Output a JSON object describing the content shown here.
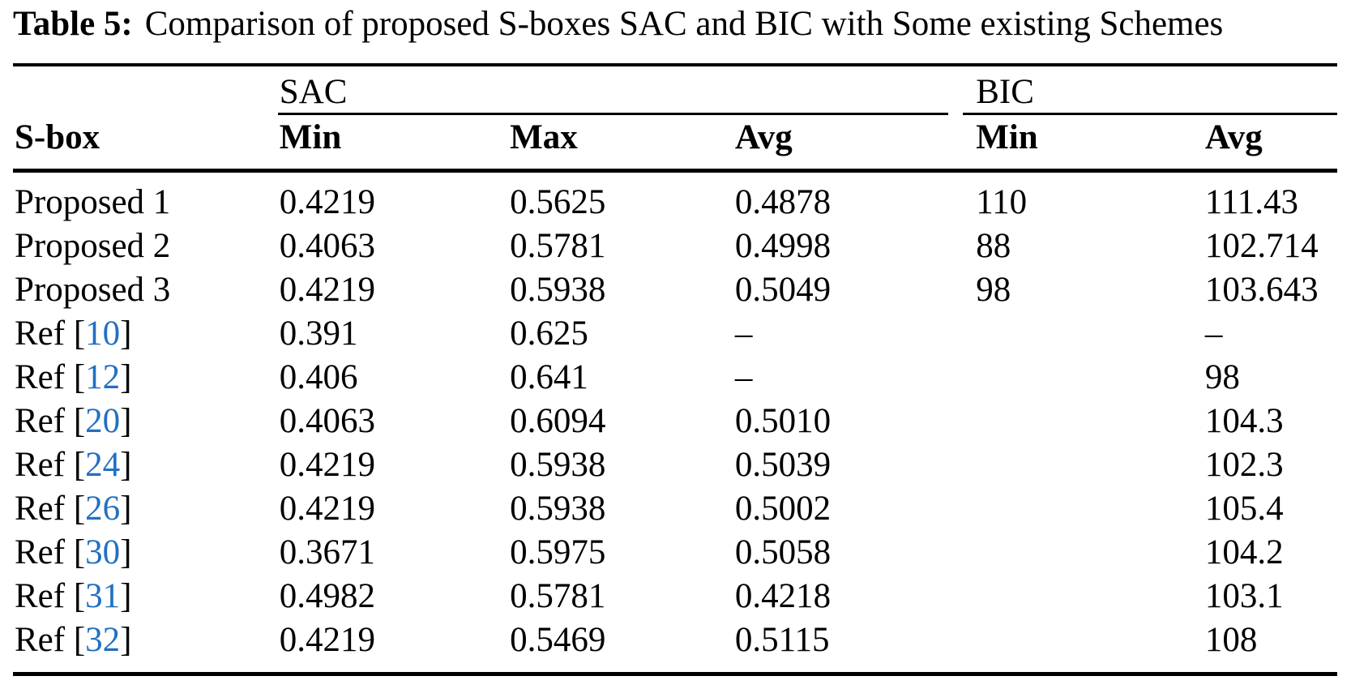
{
  "title": {
    "label": "Table 5:",
    "text": "Comparison of proposed S-boxes SAC and BIC with Some existing Schemes"
  },
  "table": {
    "row_header": "S-box",
    "col_groups": [
      {
        "label": "SAC",
        "span": 3
      },
      {
        "label": "BIC",
        "span": 2
      }
    ],
    "sub_headers": [
      "Min",
      "Max",
      "Avg",
      "Min",
      "Avg"
    ],
    "rows": [
      {
        "prefix": "Proposed 1",
        "ref": "",
        "suffix": "",
        "cells": [
          "0.4219",
          "0.5625",
          "0.4878",
          "110",
          "111.43"
        ]
      },
      {
        "prefix": "Proposed 2",
        "ref": "",
        "suffix": "",
        "cells": [
          "0.4063",
          "0.5781",
          "0.4998",
          "88",
          "102.714"
        ]
      },
      {
        "prefix": "Proposed 3",
        "ref": "",
        "suffix": "",
        "cells": [
          "0.4219",
          "0.5938",
          "0.5049",
          "98",
          "103.643"
        ]
      },
      {
        "prefix": "Ref [",
        "ref": "10",
        "suffix": "]",
        "cells": [
          "0.391",
          "0.625",
          "–",
          "",
          "–"
        ]
      },
      {
        "prefix": "Ref [",
        "ref": "12",
        "suffix": "]",
        "cells": [
          "0.406",
          "0.641",
          "–",
          "",
          "98"
        ]
      },
      {
        "prefix": "Ref [",
        "ref": "20",
        "suffix": "]",
        "cells": [
          "0.4063",
          "0.6094",
          "0.5010",
          "",
          "104.3"
        ]
      },
      {
        "prefix": "Ref [",
        "ref": "24",
        "suffix": "]",
        "cells": [
          "0.4219",
          "0.5938",
          "0.5039",
          "",
          "102.3"
        ]
      },
      {
        "prefix": "Ref [",
        "ref": "26",
        "suffix": "]",
        "cells": [
          "0.4219",
          "0.5938",
          "0.5002",
          "",
          "105.4"
        ]
      },
      {
        "prefix": "Ref [",
        "ref": "30",
        "suffix": "]",
        "cells": [
          "0.3671",
          "0.5975",
          "0.5058",
          "",
          "104.2"
        ]
      },
      {
        "prefix": "Ref [",
        "ref": "31",
        "suffix": "]",
        "cells": [
          "0.4982",
          "0.5781",
          "0.4218",
          "",
          "103.1"
        ]
      },
      {
        "prefix": "Ref [",
        "ref": "32",
        "suffix": "]",
        "cells": [
          "0.4219",
          "0.5469",
          "0.5115",
          "",
          "108"
        ]
      }
    ]
  },
  "colors": {
    "text": "#000000",
    "background": "#ffffff",
    "citation_blue": "#2170c2",
    "rule": "#000000"
  }
}
